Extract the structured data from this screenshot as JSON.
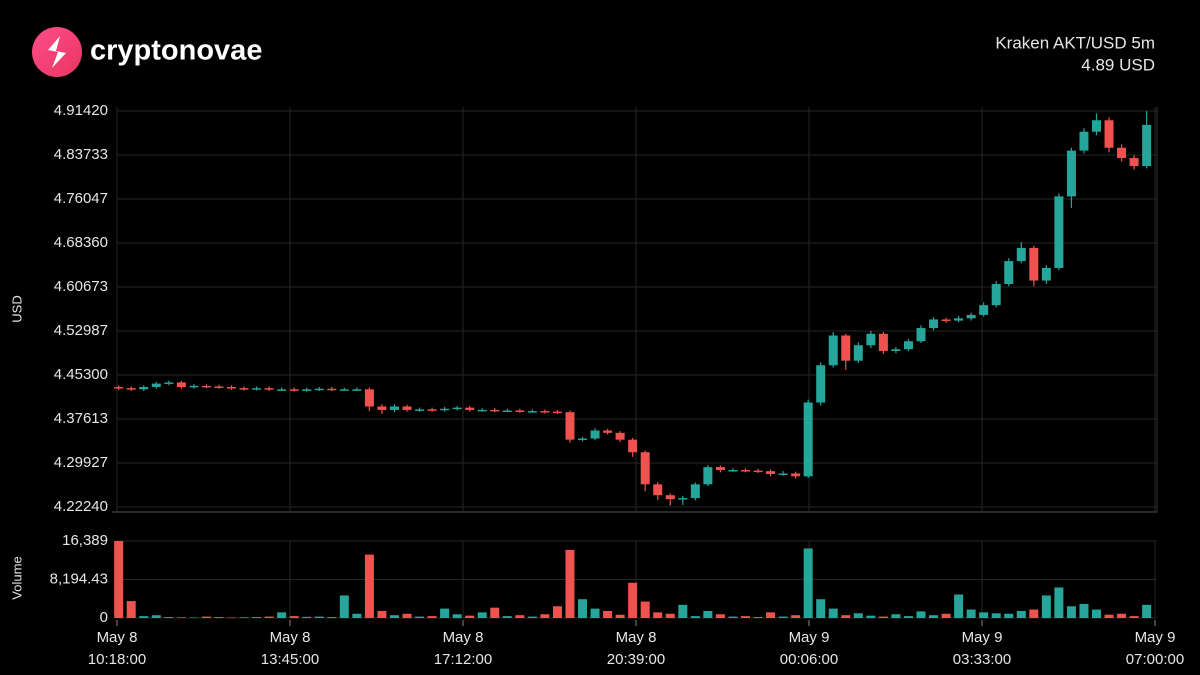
{
  "brand": "cryptonovae",
  "chart_data": {
    "type": "candlestick",
    "title": "Kraken AKT/USD 5m",
    "last_price": "4.89 USD",
    "y_label": "USD",
    "volume_label": "Volume",
    "up_color": "#26a69a",
    "down_color": "#ef5350",
    "grid": true,
    "xlim": [
      "May 8 10:18:00",
      "May 9 07:00:00"
    ],
    "xticks": [
      {
        "date": "May 8",
        "time": "10:18:00"
      },
      {
        "date": "May 8",
        "time": "13:45:00"
      },
      {
        "date": "May 8",
        "time": "17:12:00"
      },
      {
        "date": "May 8",
        "time": "20:39:00"
      },
      {
        "date": "May 9",
        "time": "00:06:00"
      },
      {
        "date": "May 9",
        "time": "03:33:00"
      },
      {
        "date": "May 9",
        "time": "07:00:00"
      }
    ],
    "ylim": [
      4.2224,
      4.9142
    ],
    "yticks": [
      {
        "value": 4.2224,
        "label": "4.22240"
      },
      {
        "value": 4.29927,
        "label": "4.29927"
      },
      {
        "value": 4.37613,
        "label": "4.37613"
      },
      {
        "value": 4.453,
        "label": "4.45300"
      },
      {
        "value": 4.52987,
        "label": "4.52987"
      },
      {
        "value": 4.60673,
        "label": "4.60673"
      },
      {
        "value": 4.6836,
        "label": "4.68360"
      },
      {
        "value": 4.76047,
        "label": "4.76047"
      },
      {
        "value": 4.83733,
        "label": "4.83733"
      },
      {
        "value": 4.9142,
        "label": "4.91420"
      }
    ],
    "volume_ylim": [
      0,
      16389
    ],
    "volume_yticks": [
      0,
      {
        "value": 8194.43,
        "label": "8,194.43"
      },
      {
        "value": 16389,
        "label": "16,389"
      }
    ],
    "x": [
      "May 8 10:20",
      "May 8 10:35",
      "May 8 10:50",
      "May 8 11:05",
      "May 8 11:20",
      "May 8 11:35",
      "May 8 11:50",
      "May 8 12:05",
      "May 8 12:20",
      "May 8 12:35",
      "May 8 12:50",
      "May 8 13:05",
      "May 8 13:20",
      "May 8 13:35",
      "May 8 13:50",
      "May 8 14:05",
      "May 8 14:20",
      "May 8 14:35",
      "May 8 14:50",
      "May 8 15:05",
      "May 8 15:20",
      "May 8 15:35",
      "May 8 15:50",
      "May 8 16:05",
      "May 8 16:20",
      "May 8 16:35",
      "May 8 16:50",
      "May 8 17:05",
      "May 8 17:20",
      "May 8 17:35",
      "May 8 17:50",
      "May 8 18:05",
      "May 8 18:20",
      "May 8 18:35",
      "May 8 18:50",
      "May 8 19:05",
      "May 8 19:20",
      "May 8 19:35",
      "May 8 19:50",
      "May 8 20:05",
      "May 8 20:20",
      "May 8 20:35",
      "May 8 20:50",
      "May 8 21:05",
      "May 8 21:20",
      "May 8 21:35",
      "May 8 21:50",
      "May 8 22:05",
      "May 8 22:20",
      "May 8 22:35",
      "May 8 22:50",
      "May 8 23:05",
      "May 8 23:20",
      "May 8 23:35",
      "May 8 23:50",
      "May 9 00:05",
      "May 9 00:20",
      "May 9 00:35",
      "May 9 00:50",
      "May 9 01:05",
      "May 9 01:20",
      "May 9 01:35",
      "May 9 01:50",
      "May 9 02:05",
      "May 9 02:20",
      "May 9 02:35",
      "May 9 02:50",
      "May 9 03:05",
      "May 9 03:20",
      "May 9 03:35",
      "May 9 03:50",
      "May 9 04:05",
      "May 9 04:20",
      "May 9 04:35",
      "May 9 04:50",
      "May 9 05:05",
      "May 9 05:20",
      "May 9 05:35",
      "May 9 05:50",
      "May 9 06:05",
      "May 9 06:20",
      "May 9 06:35",
      "May 9 06:50"
    ],
    "open": [
      4.432,
      4.43,
      4.428,
      4.432,
      4.438,
      4.44,
      4.432,
      4.434,
      4.433,
      4.432,
      4.43,
      4.429,
      4.43,
      4.428,
      4.428,
      4.427,
      4.428,
      4.429,
      4.428,
      4.428,
      4.428,
      4.398,
      4.392,
      4.398,
      4.392,
      4.393,
      4.392,
      4.394,
      4.396,
      4.392,
      4.392,
      4.391,
      4.391,
      4.39,
      4.39,
      4.389,
      4.388,
      4.34,
      4.342,
      4.356,
      4.352,
      4.34,
      4.318,
      4.262,
      4.243,
      4.236,
      4.238,
      4.262,
      4.292,
      4.287,
      4.287,
      4.286,
      4.285,
      4.28,
      4.281,
      4.276,
      4.405,
      4.47,
      4.522,
      4.478,
      4.505,
      4.525,
      4.495,
      4.498,
      4.512,
      4.535,
      4.55,
      4.548,
      4.552,
      4.558,
      4.575,
      4.612,
      4.652,
      4.675,
      4.618,
      4.64,
      4.765,
      4.845,
      4.878,
      4.898,
      4.85,
      4.832,
      4.818
    ],
    "high": [
      4.435,
      4.433,
      4.435,
      4.441,
      4.443,
      4.443,
      4.437,
      4.437,
      4.436,
      4.435,
      4.433,
      4.433,
      4.433,
      4.431,
      4.431,
      4.431,
      4.432,
      4.432,
      4.431,
      4.431,
      4.431,
      4.402,
      4.402,
      4.401,
      4.396,
      4.396,
      4.397,
      4.399,
      4.399,
      4.395,
      4.395,
      4.394,
      4.394,
      4.393,
      4.393,
      4.392,
      4.391,
      4.345,
      4.36,
      4.359,
      4.355,
      4.343,
      4.321,
      4.266,
      4.246,
      4.242,
      4.265,
      4.296,
      4.295,
      4.29,
      4.29,
      4.289,
      4.288,
      4.285,
      4.284,
      4.41,
      4.475,
      4.528,
      4.525,
      4.51,
      4.53,
      4.528,
      4.502,
      4.516,
      4.54,
      4.554,
      4.553,
      4.556,
      4.562,
      4.58,
      4.617,
      4.657,
      4.685,
      4.679,
      4.645,
      4.77,
      4.85,
      4.884,
      4.91,
      4.903,
      4.856,
      4.837,
      4.9142
    ],
    "low": [
      4.427,
      4.425,
      4.425,
      4.429,
      4.435,
      4.429,
      4.429,
      4.43,
      4.429,
      4.427,
      4.426,
      4.426,
      4.425,
      4.425,
      4.424,
      4.424,
      4.425,
      4.425,
      4.425,
      4.425,
      4.39,
      4.385,
      4.388,
      4.389,
      4.389,
      4.389,
      4.389,
      4.391,
      4.389,
      4.389,
      4.388,
      4.388,
      4.387,
      4.387,
      4.386,
      4.385,
      4.335,
      4.337,
      4.339,
      4.349,
      4.336,
      4.31,
      4.25,
      4.235,
      4.225,
      4.226,
      4.234,
      4.259,
      4.283,
      4.284,
      4.283,
      4.282,
      4.276,
      4.277,
      4.272,
      4.273,
      4.4,
      4.466,
      4.462,
      4.474,
      4.5,
      4.49,
      4.491,
      4.495,
      4.509,
      4.531,
      4.544,
      4.545,
      4.548,
      4.555,
      4.571,
      4.608,
      4.648,
      4.608,
      4.612,
      4.636,
      4.745,
      4.84,
      4.872,
      4.842,
      4.826,
      4.812,
      4.814
    ],
    "close": [
      4.43,
      4.428,
      4.432,
      4.438,
      4.44,
      4.432,
      4.434,
      4.433,
      4.432,
      4.43,
      4.429,
      4.43,
      4.428,
      4.428,
      4.427,
      4.428,
      4.429,
      4.428,
      4.428,
      4.428,
      4.398,
      4.392,
      4.398,
      4.392,
      4.393,
      4.392,
      4.394,
      4.396,
      4.392,
      4.392,
      4.391,
      4.391,
      4.39,
      4.39,
      4.389,
      4.388,
      4.34,
      4.342,
      4.356,
      4.352,
      4.34,
      4.318,
      4.262,
      4.243,
      4.236,
      4.238,
      4.262,
      4.292,
      4.287,
      4.287,
      4.286,
      4.285,
      4.28,
      4.281,
      4.276,
      4.405,
      4.47,
      4.522,
      4.478,
      4.505,
      4.525,
      4.495,
      4.498,
      4.512,
      4.535,
      4.55,
      4.548,
      4.552,
      4.558,
      4.575,
      4.612,
      4.652,
      4.675,
      4.618,
      4.64,
      4.765,
      4.845,
      4.878,
      4.898,
      4.85,
      4.832,
      4.818,
      4.89
    ],
    "volume": [
      16389,
      3600,
      400,
      600,
      200,
      150,
      100,
      300,
      200,
      100,
      150,
      200,
      300,
      1200,
      400,
      250,
      300,
      200,
      4800,
      900,
      13500,
      1500,
      600,
      900,
      300,
      400,
      2000,
      800,
      500,
      1200,
      2200,
      400,
      600,
      300,
      800,
      2500,
      14500,
      4000,
      2000,
      1500,
      700,
      7500,
      3500,
      1200,
      900,
      2800,
      400,
      1500,
      800,
      300,
      400,
      200,
      1200,
      300,
      600,
      14800,
      4000,
      2000,
      600,
      1000,
      500,
      300,
      800,
      400,
      1400,
      600,
      900,
      5000,
      1800,
      1200,
      1000,
      900,
      1500,
      1800,
      4800,
      6500,
      2500,
      3000,
      1800,
      700,
      900,
      400,
      2800
    ]
  }
}
